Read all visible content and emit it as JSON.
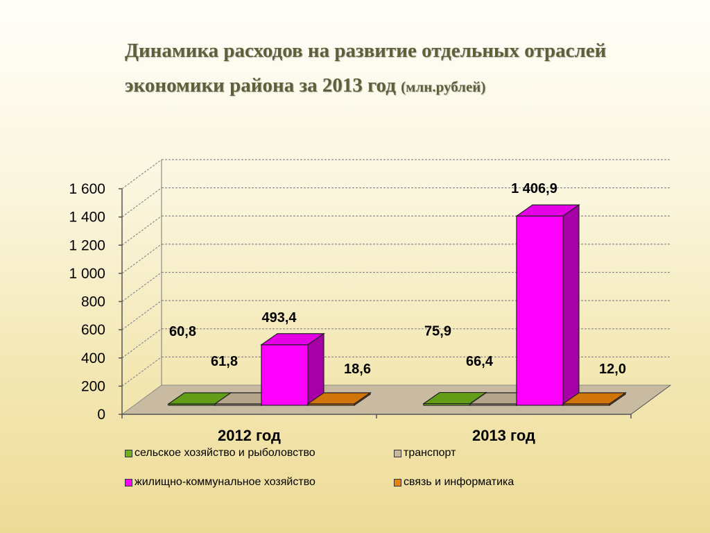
{
  "title": {
    "main": "Динамика расходов на развитие отдельных отраслей экономики района за 2013 год",
    "units": "(млн.рублей)"
  },
  "chart_data": {
    "type": "bar",
    "categories": [
      "2012 год",
      "2013 год"
    ],
    "series": [
      {
        "name": "сельское хозяйство и рыболовство",
        "color": "#6fb01c",
        "values": [
          60.8,
          75.9
        ],
        "labels": [
          "60,8",
          "75,9"
        ]
      },
      {
        "name": "транспорт",
        "color": "#c9b79a",
        "values": [
          61.8,
          66.4
        ],
        "labels": [
          "61,8",
          "66,4"
        ]
      },
      {
        "name": "жилищно-коммунальное хозяйство",
        "color": "#ff00ff",
        "values": [
          493.4,
          1406.9
        ],
        "labels": [
          "493,4",
          "1 406,9"
        ]
      },
      {
        "name": "связь и информатика",
        "color": "#e8820c",
        "values": [
          18.6,
          12.0
        ],
        "labels": [
          "18,6",
          "12,0"
        ]
      }
    ],
    "ylim": [
      0,
      1600
    ],
    "yticks": [
      0,
      200,
      400,
      600,
      800,
      1000,
      1200,
      1400,
      1600
    ],
    "ytick_labels": [
      "0",
      "200",
      "400",
      "600",
      "800",
      "1 000",
      "1 200",
      "1 400",
      "1 600"
    ],
    "grid": true,
    "legend_position": "bottom"
  }
}
